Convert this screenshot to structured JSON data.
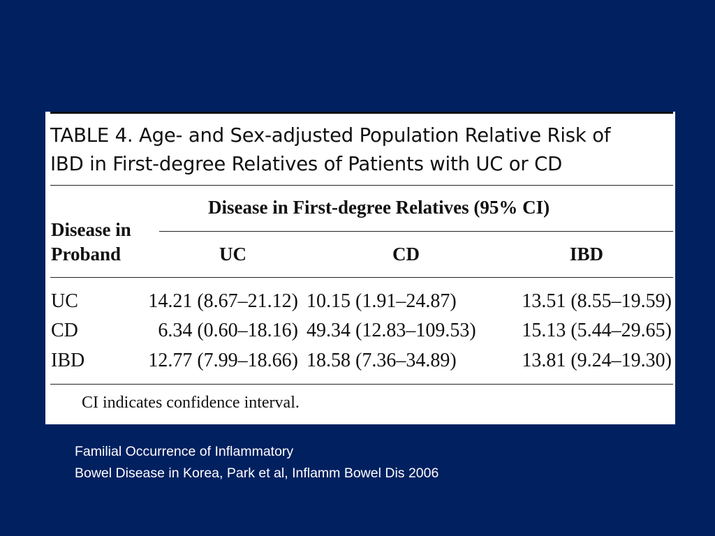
{
  "table": {
    "title_label": "TABLE 4.",
    "title_line1": "Age- and Sex-adjusted Population Relative Risk of",
    "title_line2": "IBD in First-degree Relatives of Patients with UC or CD",
    "group_header": "Disease in First-degree Relatives (95% CI)",
    "row_header_line1": "Disease in",
    "row_header_line2": "Proband",
    "columns": [
      "UC",
      "CD",
      "IBD"
    ],
    "rows": [
      {
        "label": "UC",
        "cells": [
          "14.21 (8.67–21.12)",
          "10.15 (1.91–24.87)",
          "13.51 (8.55–19.59)"
        ]
      },
      {
        "label": "CD",
        "cells": [
          "6.34 (0.60–18.16)",
          "49.34 (12.83–109.53)",
          "15.13 (5.44–29.65)"
        ]
      },
      {
        "label": "IBD",
        "cells": [
          "12.77 (7.99–18.66)",
          "18.58 (7.36–34.89)",
          "13.81 (9.24–19.30)"
        ]
      }
    ],
    "footnote": "CI indicates confidence interval."
  },
  "caption": {
    "line1": "Familial Occurrence of Inflammatory",
    "line2": "Bowel Disease in Korea, Park et al, Inflamm Bowel Dis 2006"
  },
  "colors": {
    "background": "#012060",
    "card": "#ffffff",
    "caption_text": "#ffffff"
  }
}
